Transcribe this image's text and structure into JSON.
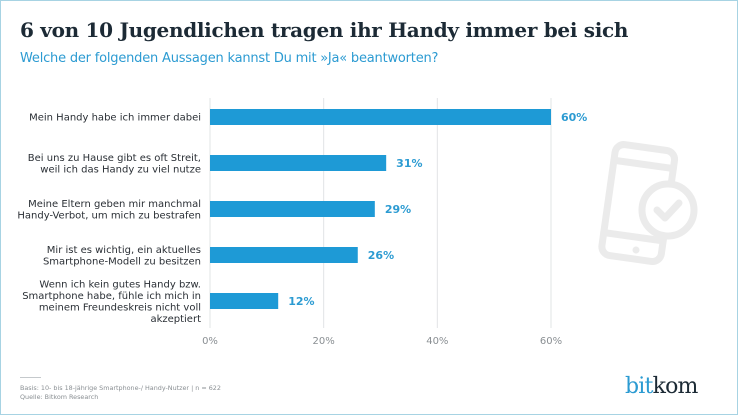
{
  "header": {
    "title": "6 von 10 Jugendlichen tragen ihr Handy immer bei sich",
    "subtitle": "Welche der folgenden Aussagen kannst Du mit »Ja« beantworten?"
  },
  "colors": {
    "bar": "#1e9ad6",
    "accent": "#2c9bd2",
    "title": "#1c2a35",
    "grid": "#e2e4e6",
    "icon": "#ebebeb"
  },
  "chart_data": {
    "type": "bar",
    "orientation": "horizontal",
    "title": "6 von 10 Jugendlichen tragen ihr Handy immer bei sich",
    "subtitle": "Welche der folgenden Aussagen kannst Du mit »Ja« beantworten?",
    "xlabel": "",
    "ylabel": "",
    "categories": [
      [
        "Mein Handy habe ich immer dabei"
      ],
      [
        "Bei uns zu Hause gibt es oft Streit,",
        "weil ich das Handy zu viel nutze"
      ],
      [
        "Meine Eltern geben mir manchmal",
        "Handy-Verbot, um mich zu bestrafen"
      ],
      [
        "Mir ist es wichtig, ein aktuelles",
        "Smartphone-Modell zu besitzen"
      ],
      [
        "Wenn ich kein gutes Handy bzw.",
        "Smartphone habe, fühle ich mich in",
        "meinem Freundeskreis nicht voll",
        "akzeptiert"
      ]
    ],
    "values": [
      60,
      31,
      29,
      26,
      12
    ],
    "value_labels": [
      "60%",
      "31%",
      "29%",
      "26%",
      "12%"
    ],
    "unit": "%",
    "xlim": [
      0,
      60
    ],
    "xticks": [
      0,
      20,
      40,
      60
    ],
    "xtick_labels": [
      "0%",
      "20%",
      "40%",
      "60%"
    ],
    "grid": true,
    "legend": "none"
  },
  "footer": {
    "basis": "Basis: 10- bis 18-jährige Smartphone-/ Handy-Nutzer | n = 622",
    "source": "Quelle: Bitkom Research"
  },
  "logo": {
    "part1": "bit",
    "part2": "kom"
  },
  "decoration": {
    "icon": "smartphone-check-icon"
  }
}
